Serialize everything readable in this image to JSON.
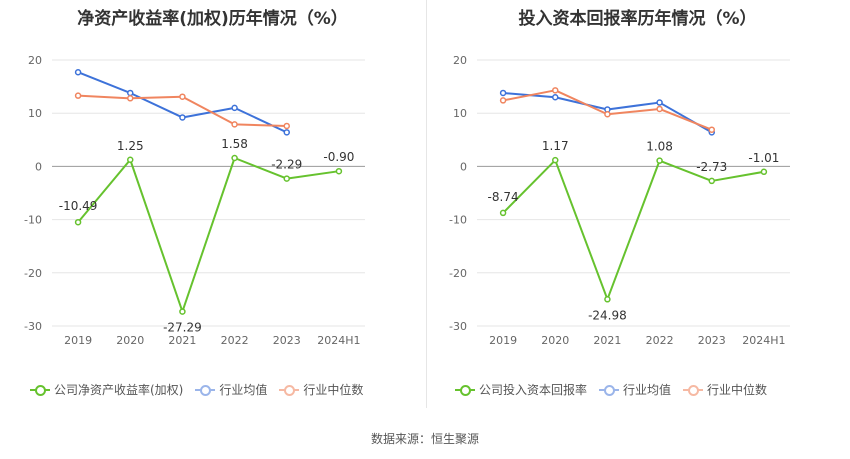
{
  "source": "数据来源：恒生聚源",
  "chart_data": [
    {
      "type": "line",
      "title": "净资产收益率(加权)历年情况（%）",
      "categories": [
        "2019",
        "2020",
        "2021",
        "2022",
        "2023",
        "2024H1"
      ],
      "ylim": [
        -30,
        20
      ],
      "yticks": [
        20,
        10,
        0,
        -10,
        -20,
        -30
      ],
      "grid": true,
      "legend_position": "bottom",
      "series": [
        {
          "name": "公司净资产收益率(加权)",
          "color": "#66c22e",
          "values": [
            -10.49,
            1.25,
            -27.29,
            1.58,
            -2.29,
            -0.9
          ],
          "labels": [
            "-10.49",
            "1.25",
            "-27.29",
            "1.58",
            "-2.29",
            "-0.90"
          ]
        },
        {
          "name": "行业均值",
          "color": "#3d72d9",
          "values": [
            17.7,
            13.8,
            9.2,
            11.0,
            6.4,
            null
          ]
        },
        {
          "name": "行业中位数",
          "color": "#f0855f",
          "values": [
            13.3,
            12.8,
            13.1,
            7.9,
            7.6,
            null
          ]
        }
      ]
    },
    {
      "type": "line",
      "title": "投入资本回报率历年情况（%）",
      "categories": [
        "2019",
        "2020",
        "2021",
        "2022",
        "2023",
        "2024H1"
      ],
      "ylim": [
        -30,
        20
      ],
      "yticks": [
        20,
        10,
        0,
        -10,
        -20,
        -30
      ],
      "grid": true,
      "legend_position": "bottom",
      "series": [
        {
          "name": "公司投入资本回报率",
          "color": "#66c22e",
          "values": [
            -8.74,
            1.17,
            -24.98,
            1.08,
            -2.73,
            -1.01
          ],
          "labels": [
            "-8.74",
            "1.17",
            "-24.98",
            "1.08",
            "-2.73",
            "-1.01"
          ]
        },
        {
          "name": "行业均值",
          "color": "#3d72d9",
          "values": [
            13.8,
            13.0,
            10.7,
            12.0,
            6.4,
            null
          ]
        },
        {
          "name": "行业中位数",
          "color": "#f0855f",
          "values": [
            12.4,
            14.3,
            9.8,
            10.8,
            6.9,
            null
          ]
        }
      ]
    }
  ]
}
